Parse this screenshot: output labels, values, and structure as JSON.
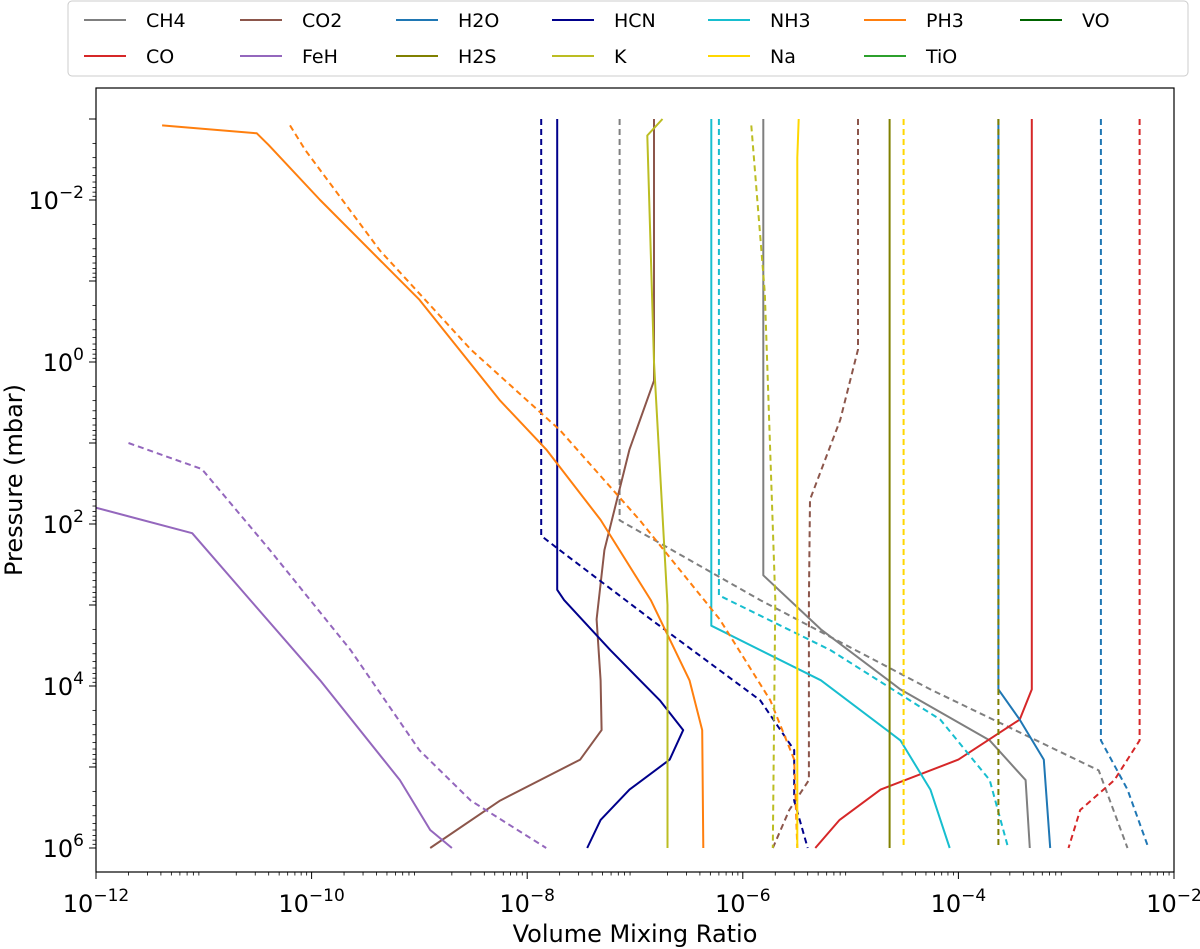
{
  "chart_data": {
    "type": "line",
    "xlabel": "Volume Mixing Ratio",
    "ylabel": "Pressure (mbar)",
    "xscale": "log",
    "yscale": "log",
    "y_inverted": true,
    "xlim": [
      1e-12,
      0.01
    ],
    "ylim": [
      2000000.0,
      0.0004
    ],
    "xticks": [
      {
        "value": 1e-12,
        "base": "10",
        "exp": "−12"
      },
      {
        "value": 1e-10,
        "base": "10",
        "exp": "−10"
      },
      {
        "value": 1e-08,
        "base": "10",
        "exp": "−8"
      },
      {
        "value": 1e-06,
        "base": "10",
        "exp": "−6"
      },
      {
        "value": 0.0001,
        "base": "10",
        "exp": "−4"
      },
      {
        "value": 0.01,
        "base": "10",
        "exp": "−2"
      }
    ],
    "yticks": [
      {
        "value": 0.01,
        "base": "10",
        "exp": "−2"
      },
      {
        "value": 1.0,
        "base": "10",
        "exp": "0"
      },
      {
        "value": 100.0,
        "base": "10",
        "exp": "2"
      },
      {
        "value": 10000.0,
        "base": "10",
        "exp": "4"
      },
      {
        "value": 1000000.0,
        "base": "10",
        "exp": "6"
      }
    ],
    "grid": false,
    "legend_position": "top (outside, 7 columns)",
    "legend": [
      {
        "name": "CH4",
        "color": "#7f7f7f"
      },
      {
        "name": "CO2",
        "color": "#8c564b"
      },
      {
        "name": "H2O",
        "color": "#1f77b4"
      },
      {
        "name": "HCN",
        "color": "#00008b"
      },
      {
        "name": "NH3",
        "color": "#17becf"
      },
      {
        "name": "PH3",
        "color": "#ff7f0e"
      },
      {
        "name": "VO",
        "color": "#006400"
      },
      {
        "name": "CO",
        "color": "#d62728"
      },
      {
        "name": "FeH",
        "color": "#9467bd"
      },
      {
        "name": "H2S",
        "color": "#808000"
      },
      {
        "name": "K",
        "color": "#bcbd22"
      },
      {
        "name": "Na",
        "color": "#ffd700"
      },
      {
        "name": "TiO",
        "color": "#2ca02c"
      }
    ],
    "series": [
      {
        "name": "CH4",
        "style": "solid",
        "color": "#7f7f7f",
        "points": [
          [
            1.55e-06,
            0.001
          ],
          [
            1.55e-06,
            430.0
          ],
          [
            5.3e-06,
            2000.0
          ],
          [
            2.9e-05,
            11000.0
          ],
          [
            0.000195,
            47000.0
          ],
          [
            0.00042,
            145000.0
          ],
          [
            0.00046,
            1000000.0
          ]
        ]
      },
      {
        "name": "CH4",
        "style": "dashed",
        "color": "#7f7f7f",
        "points": [
          [
            7.2e-08,
            0.001
          ],
          [
            7.2e-08,
            90.0
          ],
          [
            1.45e-06,
            870.0
          ],
          [
            5.5e-05,
            11000.0
          ],
          [
            0.002,
            110000.0
          ],
          [
            0.0037,
            1000000.0
          ]
        ]
      },
      {
        "name": "CO",
        "style": "solid",
        "color": "#d62728",
        "points": [
          [
            0.00048,
            0.001
          ],
          [
            0.00048,
            11000.0
          ],
          [
            0.00037,
            26000.0
          ],
          [
            0.0001,
            81000.0
          ],
          [
            1.9e-05,
            190000.0
          ],
          [
            7.9e-06,
            450000.0
          ],
          [
            4.7e-06,
            1000000.0
          ]
        ]
      },
      {
        "name": "CO",
        "style": "dashed",
        "color": "#d62728",
        "points": [
          [
            0.0048,
            0.001
          ],
          [
            0.0048,
            47000.0
          ],
          [
            0.0028,
            145000.0
          ],
          [
            0.00135,
            340000.0
          ],
          [
            0.00105,
            1000000.0
          ]
        ]
      },
      {
        "name": "CO2",
        "style": "solid",
        "color": "#8c564b",
        "points": [
          [
            1.5e-07,
            0.001
          ],
          [
            1.5e-07,
            1.7
          ],
          [
            8.9e-08,
            12.0
          ],
          [
            5.2e-08,
            210.0
          ],
          [
            4.4e-08,
            1500.0
          ],
          [
            4.8e-08,
            8500.0
          ],
          [
            4.9e-08,
            35000.0
          ],
          [
            3.1e-08,
            81000.0
          ],
          [
            5.6e-09,
            260000.0
          ],
          [
            1.26e-09,
            1000000.0
          ]
        ]
      },
      {
        "name": "CO2",
        "style": "dashed",
        "color": "#8c564b",
        "points": [
          [
            1.17e-05,
            0.001
          ],
          [
            1.17e-05,
            0.7
          ],
          [
            8e-06,
            5.2
          ],
          [
            4.2e-06,
            50.0
          ],
          [
            4.1e-06,
            870.0
          ],
          [
            4.1e-06,
            15000.0
          ],
          [
            4.1e-06,
            145000.0
          ],
          [
            2.7e-06,
            340000.0
          ],
          [
            1.9e-06,
            1000000.0
          ]
        ]
      },
      {
        "name": "H2O",
        "style": "solid",
        "color": "#1f77b4",
        "points": [
          [
            0.000235,
            0.001
          ],
          [
            0.000235,
            11000.0
          ],
          [
            0.00037,
            26000.0
          ],
          [
            0.00062,
            81000.0
          ],
          [
            0.00071,
            1000000.0
          ]
        ]
      },
      {
        "name": "H2O",
        "style": "dashed",
        "color": "#1f77b4",
        "points": [
          [
            0.0021,
            0.001
          ],
          [
            0.0021,
            47000.0
          ],
          [
            0.0037,
            190000.0
          ],
          [
            0.0058,
            1000000.0
          ]
        ]
      },
      {
        "name": "HCN",
        "style": "solid",
        "color": "#00008b",
        "points": [
          [
            1.9e-08,
            0.001
          ],
          [
            1.9e-08,
            650.0
          ],
          [
            2.2e-08,
            870.0
          ],
          [
            5.9e-08,
            3600.0
          ],
          [
            1.7e-07,
            15000.0
          ],
          [
            2.8e-07,
            35000.0
          ],
          [
            2.1e-07,
            81000.0
          ],
          [
            8.9e-08,
            190000.0
          ],
          [
            4.8e-08,
            450000.0
          ],
          [
            3.6e-08,
            1000000.0
          ]
        ]
      },
      {
        "name": "HCN",
        "style": "dashed",
        "color": "#00008b",
        "points": [
          [
            1.35e-08,
            0.001
          ],
          [
            1.35e-08,
            140.0
          ],
          [
            2e-08,
            210.0
          ],
          [
            1.4e-07,
            1500.0
          ],
          [
            1.45e-06,
            15000.0
          ],
          [
            3e-06,
            62000.0
          ],
          [
            3e-06,
            260000.0
          ],
          [
            4e-06,
            1000000.0
          ]
        ]
      },
      {
        "name": "NH3",
        "style": "solid",
        "color": "#17becf",
        "points": [
          [
            5.1e-07,
            0.001
          ],
          [
            5.1e-07,
            1800.0
          ],
          [
            5.3e-06,
            8500.0
          ],
          [
            2.9e-05,
            47000.0
          ],
          [
            5.5e-05,
            190000.0
          ],
          [
            8.3e-05,
            1000000.0
          ]
        ]
      },
      {
        "name": "NH3",
        "style": "dashed",
        "color": "#17becf",
        "points": [
          [
            6e-07,
            0.001
          ],
          [
            6e-07,
            760.0
          ],
          [
            6.5e-06,
            3600.0
          ],
          [
            6.8e-05,
            26000.0
          ],
          [
            0.000195,
            145000.0
          ],
          [
            0.00029,
            1000000.0
          ]
        ]
      },
      {
        "name": "PH3",
        "style": "solid",
        "color": "#ff7f0e",
        "points": [
          [
            4.1e-12,
            0.0012
          ],
          [
            3.1e-11,
            0.0015
          ],
          [
            4e-11,
            0.0021
          ],
          [
            1.2e-10,
            0.01
          ],
          [
            1e-09,
            0.17
          ],
          [
            5.6e-09,
            3.0
          ],
          [
            1.5e-08,
            12.0
          ],
          [
            4.8e-08,
            89.0
          ],
          [
            1.4e-07,
            870.0
          ],
          [
            3.2e-07,
            8500.0
          ],
          [
            4.2e-07,
            35000.0
          ],
          [
            4.3e-07,
            1000000.0
          ]
        ]
      },
      {
        "name": "PH3",
        "style": "dashed",
        "color": "#ff7f0e",
        "points": [
          [
            6.3e-11,
            0.0012
          ],
          [
            8.7e-11,
            0.0024
          ],
          [
            4.3e-10,
            0.042
          ],
          [
            3e-09,
            0.7
          ],
          [
            2e-08,
            6.9
          ],
          [
            1.1e-07,
            89.0
          ],
          [
            6.1e-07,
            1500.0
          ],
          [
            1.8e-06,
            15000.0
          ],
          [
            3e-06,
            81000.0
          ],
          [
            3.2e-06,
            1000000.0
          ]
        ]
      },
      {
        "name": "FeH",
        "style": "solid",
        "color": "#9467bd",
        "points": [
          [
            1e-12,
            63.0
          ],
          [
            7.8e-12,
            130.0
          ],
          [
            2.7e-11,
            870.0
          ],
          [
            1.2e-10,
            8500.0
          ],
          [
            6.6e-10,
            145000.0
          ],
          [
            1.26e-09,
            600000.0
          ],
          [
            2e-09,
            1000000.0
          ]
        ]
      },
      {
        "name": "FeH",
        "style": "dashed",
        "color": "#9467bd",
        "points": [
          [
            2e-12,
            10.0
          ],
          [
            9.6e-12,
            21.0
          ],
          [
            4.1e-11,
            210.0
          ],
          [
            2.3e-10,
            3600.0
          ],
          [
            1e-09,
            62000.0
          ],
          [
            3e-09,
            260000.0
          ],
          [
            1.5e-08,
            1000000.0
          ]
        ]
      },
      {
        "name": "H2S",
        "style": "solid",
        "color": "#808000",
        "points": [
          [
            2.3e-05,
            0.001
          ],
          [
            2.3e-05,
            1000000.0
          ]
        ]
      },
      {
        "name": "H2S",
        "style": "dashed",
        "color": "#808000",
        "points": [
          [
            0.000235,
            0.001
          ],
          [
            0.000235,
            1000000.0
          ]
        ]
      },
      {
        "name": "K",
        "style": "solid",
        "color": "#bcbd22",
        "points": [
          [
            1.8e-07,
            0.001
          ],
          [
            1.3e-07,
            0.0016
          ],
          [
            1.5e-07,
            1.0
          ],
          [
            2e-07,
            1000.0
          ],
          [
            2e-07,
            1000000.0
          ]
        ]
      },
      {
        "name": "K",
        "style": "dashed",
        "color": "#bcbd22",
        "points": [
          [
            1.2e-06,
            0.0012
          ],
          [
            1.6e-06,
            0.14
          ],
          [
            2e-06,
            870.0
          ],
          [
            1.9e-06,
            1000000.0
          ]
        ]
      },
      {
        "name": "Na",
        "style": "solid",
        "color": "#ffd700",
        "points": [
          [
            3.3e-06,
            0.001
          ],
          [
            3.2e-06,
            0.003
          ],
          [
            3.2e-06,
            1000000.0
          ]
        ]
      },
      {
        "name": "Na",
        "style": "dashed",
        "color": "#ffd700",
        "points": [
          [
            3.1e-05,
            0.001
          ],
          [
            3.1e-05,
            1000000.0
          ]
        ]
      }
    ]
  }
}
